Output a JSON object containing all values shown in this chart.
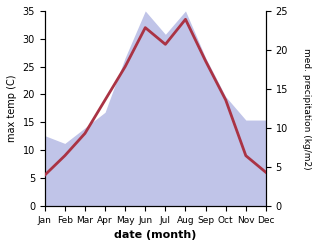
{
  "months": [
    "Jan",
    "Feb",
    "Mar",
    "Apr",
    "May",
    "Jun",
    "Jul",
    "Aug",
    "Sep",
    "Oct",
    "Nov",
    "Dec"
  ],
  "temperature": [
    5.5,
    9.0,
    13.0,
    19.0,
    25.0,
    32.0,
    29.0,
    33.5,
    26.0,
    19.0,
    9.0,
    6.0
  ],
  "precipitation": [
    9,
    8,
    10,
    12,
    19,
    25,
    22,
    25,
    19,
    14,
    11,
    11
  ],
  "temp_color": "#aa3344",
  "precip_fill_color": "#c0c4e8",
  "ylabel_left": "max temp (C)",
  "ylabel_right": "med. precipitation (kg/m2)",
  "xlabel": "date (month)",
  "ylim_left": [
    0,
    35
  ],
  "ylim_right": [
    0,
    25
  ],
  "yticks_left": [
    0,
    5,
    10,
    15,
    20,
    25,
    30,
    35
  ],
  "yticks_right": [
    0,
    5,
    10,
    15,
    20,
    25
  ],
  "bg_color": "#ffffff",
  "line_width": 2.0
}
